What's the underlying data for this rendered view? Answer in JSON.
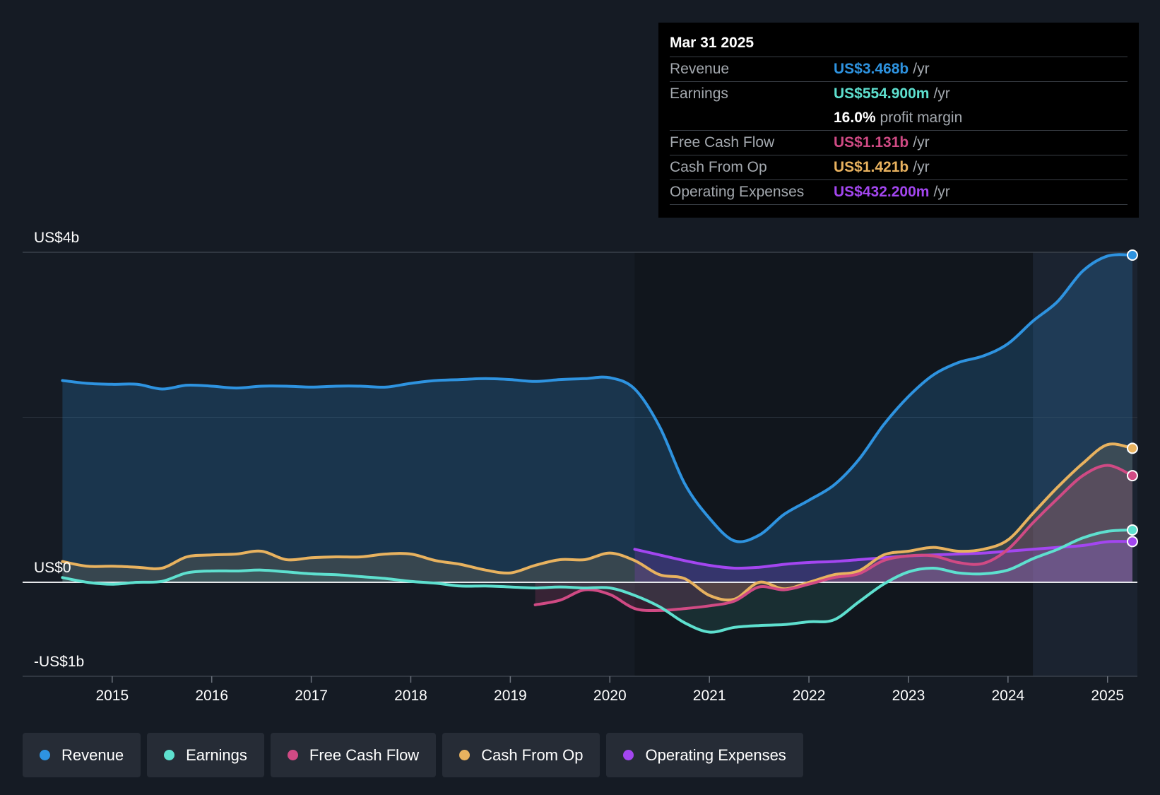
{
  "tooltip": {
    "date": "Mar 31 2025",
    "rows": [
      {
        "label": "Revenue",
        "value": "US$3.468b",
        "unit": "/yr",
        "color": "#2e93e0"
      },
      {
        "label": "Earnings",
        "value": "US$554.900m",
        "unit": "/yr",
        "color": "#5ee0cf"
      },
      {
        "label": "",
        "value": "16.0%",
        "unit": "profit margin",
        "color": "#ffffff"
      },
      {
        "label": "Free Cash Flow",
        "value": "US$1.131b",
        "unit": "/yr",
        "color": "#d04a84"
      },
      {
        "label": "Cash From Op",
        "value": "US$1.421b",
        "unit": "/yr",
        "color": "#e8b25f"
      },
      {
        "label": "Operating Expenses",
        "value": "US$432.200m",
        "unit": "/yr",
        "color": "#a346f0"
      }
    ]
  },
  "legend": [
    {
      "label": "Revenue",
      "color": "#2e93e0"
    },
    {
      "label": "Earnings",
      "color": "#5ee0cf"
    },
    {
      "label": "Free Cash Flow",
      "color": "#d04a84"
    },
    {
      "label": "Cash From Op",
      "color": "#e8b25f"
    },
    {
      "label": "Operating Expenses",
      "color": "#a346f0"
    }
  ],
  "chart_data": {
    "type": "line",
    "title": "",
    "x_range": [
      2014.1,
      2025.3
    ],
    "ylim": [
      -1.0,
      3.5
    ],
    "y_axis_labels": [
      {
        "label": "US$4b",
        "value": 3.5
      },
      {
        "label": "US$0",
        "value": 0
      },
      {
        "label": "-US$1b",
        "value": -1.0
      }
    ],
    "x_ticks": [
      {
        "label": "2015",
        "value": 2015
      },
      {
        "label": "2016",
        "value": 2016
      },
      {
        "label": "2017",
        "value": 2017
      },
      {
        "label": "2018",
        "value": 2018
      },
      {
        "label": "2019",
        "value": 2019
      },
      {
        "label": "2020",
        "value": 2020
      },
      {
        "label": "2021",
        "value": 2021
      },
      {
        "label": "2022",
        "value": 2022
      },
      {
        "label": "2023",
        "value": 2023
      },
      {
        "label": "2024",
        "value": 2024
      },
      {
        "label": "2025",
        "value": 2025
      }
    ],
    "series": [
      {
        "name": "Revenue",
        "color": "#2e93e0",
        "fill": true,
        "points": [
          [
            2014.5,
            2.14
          ],
          [
            2014.75,
            2.11
          ],
          [
            2015.0,
            2.1
          ],
          [
            2015.25,
            2.1
          ],
          [
            2015.5,
            2.05
          ],
          [
            2015.75,
            2.09
          ],
          [
            2016.0,
            2.08
          ],
          [
            2016.25,
            2.06
          ],
          [
            2016.5,
            2.08
          ],
          [
            2016.75,
            2.08
          ],
          [
            2017.0,
            2.07
          ],
          [
            2017.25,
            2.08
          ],
          [
            2017.5,
            2.08
          ],
          [
            2017.75,
            2.07
          ],
          [
            2018.0,
            2.11
          ],
          [
            2018.25,
            2.14
          ],
          [
            2018.5,
            2.15
          ],
          [
            2018.75,
            2.16
          ],
          [
            2019.0,
            2.15
          ],
          [
            2019.25,
            2.13
          ],
          [
            2019.5,
            2.15
          ],
          [
            2019.75,
            2.16
          ],
          [
            2020.0,
            2.17
          ],
          [
            2020.25,
            2.05
          ],
          [
            2020.5,
            1.65
          ],
          [
            2020.75,
            1.05
          ],
          [
            2021.0,
            0.68
          ],
          [
            2021.25,
            0.44
          ],
          [
            2021.5,
            0.5
          ],
          [
            2021.75,
            0.72
          ],
          [
            2022.0,
            0.87
          ],
          [
            2022.25,
            1.03
          ],
          [
            2022.5,
            1.3
          ],
          [
            2022.75,
            1.67
          ],
          [
            2023.0,
            1.97
          ],
          [
            2023.25,
            2.2
          ],
          [
            2023.5,
            2.33
          ],
          [
            2023.75,
            2.4
          ],
          [
            2024.0,
            2.53
          ],
          [
            2024.25,
            2.77
          ],
          [
            2024.5,
            2.98
          ],
          [
            2024.75,
            3.3
          ],
          [
            2025.0,
            3.46
          ],
          [
            2025.25,
            3.47
          ]
        ]
      },
      {
        "name": "Earnings",
        "color": "#5ee0cf",
        "fill": true,
        "points": [
          [
            2014.5,
            0.05
          ],
          [
            2014.75,
            0.0
          ],
          [
            2015.0,
            -0.02
          ],
          [
            2015.25,
            0.0
          ],
          [
            2015.5,
            0.01
          ],
          [
            2015.75,
            0.1
          ],
          [
            2016.0,
            0.12
          ],
          [
            2016.25,
            0.12
          ],
          [
            2016.5,
            0.13
          ],
          [
            2016.75,
            0.11
          ],
          [
            2017.0,
            0.09
          ],
          [
            2017.25,
            0.08
          ],
          [
            2017.5,
            0.06
          ],
          [
            2017.75,
            0.04
          ],
          [
            2018.0,
            0.01
          ],
          [
            2018.25,
            -0.01
          ],
          [
            2018.5,
            -0.04
          ],
          [
            2018.75,
            -0.04
          ],
          [
            2019.0,
            -0.05
          ],
          [
            2019.25,
            -0.06
          ],
          [
            2019.5,
            -0.05
          ],
          [
            2019.75,
            -0.06
          ],
          [
            2020.0,
            -0.06
          ],
          [
            2020.25,
            -0.14
          ],
          [
            2020.5,
            -0.26
          ],
          [
            2020.75,
            -0.43
          ],
          [
            2021.0,
            -0.53
          ],
          [
            2021.25,
            -0.48
          ],
          [
            2021.5,
            -0.46
          ],
          [
            2021.75,
            -0.45
          ],
          [
            2022.0,
            -0.42
          ],
          [
            2022.25,
            -0.4
          ],
          [
            2022.5,
            -0.21
          ],
          [
            2022.75,
            -0.02
          ],
          [
            2023.0,
            0.11
          ],
          [
            2023.25,
            0.15
          ],
          [
            2023.5,
            0.1
          ],
          [
            2023.75,
            0.09
          ],
          [
            2024.0,
            0.13
          ],
          [
            2024.25,
            0.25
          ],
          [
            2024.5,
            0.35
          ],
          [
            2024.75,
            0.47
          ],
          [
            2025.0,
            0.54
          ],
          [
            2025.25,
            0.555
          ]
        ]
      },
      {
        "name": "Free Cash Flow",
        "color": "#d04a84",
        "fill": true,
        "points": [
          [
            2019.25,
            -0.24
          ],
          [
            2019.5,
            -0.19
          ],
          [
            2019.75,
            -0.08
          ],
          [
            2020.0,
            -0.13
          ],
          [
            2020.25,
            -0.28
          ],
          [
            2020.5,
            -0.3
          ],
          [
            2020.75,
            -0.28
          ],
          [
            2021.0,
            -0.25
          ],
          [
            2021.25,
            -0.2
          ],
          [
            2021.5,
            -0.05
          ],
          [
            2021.75,
            -0.08
          ],
          [
            2022.0,
            -0.02
          ],
          [
            2022.25,
            0.05
          ],
          [
            2022.5,
            0.09
          ],
          [
            2022.75,
            0.23
          ],
          [
            2023.0,
            0.28
          ],
          [
            2023.25,
            0.28
          ],
          [
            2023.5,
            0.21
          ],
          [
            2023.75,
            0.2
          ],
          [
            2024.0,
            0.35
          ],
          [
            2024.25,
            0.63
          ],
          [
            2024.5,
            0.89
          ],
          [
            2024.75,
            1.13
          ],
          [
            2025.0,
            1.24
          ],
          [
            2025.25,
            1.131
          ]
        ]
      },
      {
        "name": "Cash From Op",
        "color": "#e8b25f",
        "fill": true,
        "points": [
          [
            2014.5,
            0.22
          ],
          [
            2014.75,
            0.17
          ],
          [
            2015.0,
            0.17
          ],
          [
            2015.25,
            0.16
          ],
          [
            2015.5,
            0.15
          ],
          [
            2015.75,
            0.27
          ],
          [
            2016.0,
            0.29
          ],
          [
            2016.25,
            0.3
          ],
          [
            2016.5,
            0.33
          ],
          [
            2016.75,
            0.24
          ],
          [
            2017.0,
            0.26
          ],
          [
            2017.25,
            0.27
          ],
          [
            2017.5,
            0.27
          ],
          [
            2017.75,
            0.3
          ],
          [
            2018.0,
            0.3
          ],
          [
            2018.25,
            0.23
          ],
          [
            2018.5,
            0.19
          ],
          [
            2018.75,
            0.13
          ],
          [
            2019.0,
            0.1
          ],
          [
            2019.25,
            0.18
          ],
          [
            2019.5,
            0.24
          ],
          [
            2019.75,
            0.24
          ],
          [
            2020.0,
            0.31
          ],
          [
            2020.25,
            0.23
          ],
          [
            2020.5,
            0.08
          ],
          [
            2020.75,
            0.04
          ],
          [
            2021.0,
            -0.14
          ],
          [
            2021.25,
            -0.18
          ],
          [
            2021.5,
            0.0
          ],
          [
            2021.75,
            -0.07
          ],
          [
            2022.0,
            0.0
          ],
          [
            2022.25,
            0.08
          ],
          [
            2022.5,
            0.12
          ],
          [
            2022.75,
            0.29
          ],
          [
            2023.0,
            0.33
          ],
          [
            2023.25,
            0.37
          ],
          [
            2023.5,
            0.33
          ],
          [
            2023.75,
            0.35
          ],
          [
            2024.0,
            0.45
          ],
          [
            2024.25,
            0.73
          ],
          [
            2024.5,
            1.01
          ],
          [
            2024.75,
            1.26
          ],
          [
            2025.0,
            1.46
          ],
          [
            2025.25,
            1.421
          ]
        ]
      },
      {
        "name": "Operating Expenses",
        "color": "#a346f0",
        "fill": true,
        "points": [
          [
            2020.25,
            0.35
          ],
          [
            2020.5,
            0.29
          ],
          [
            2020.75,
            0.23
          ],
          [
            2021.0,
            0.18
          ],
          [
            2021.25,
            0.15
          ],
          [
            2021.5,
            0.16
          ],
          [
            2021.75,
            0.19
          ],
          [
            2022.0,
            0.21
          ],
          [
            2022.25,
            0.22
          ],
          [
            2022.5,
            0.24
          ],
          [
            2022.75,
            0.26
          ],
          [
            2023.0,
            0.28
          ],
          [
            2023.25,
            0.29
          ],
          [
            2023.5,
            0.3
          ],
          [
            2023.75,
            0.31
          ],
          [
            2024.0,
            0.33
          ],
          [
            2024.25,
            0.35
          ],
          [
            2024.5,
            0.37
          ],
          [
            2024.75,
            0.39
          ],
          [
            2025.0,
            0.43
          ],
          [
            2025.25,
            0.432
          ]
        ]
      }
    ]
  }
}
